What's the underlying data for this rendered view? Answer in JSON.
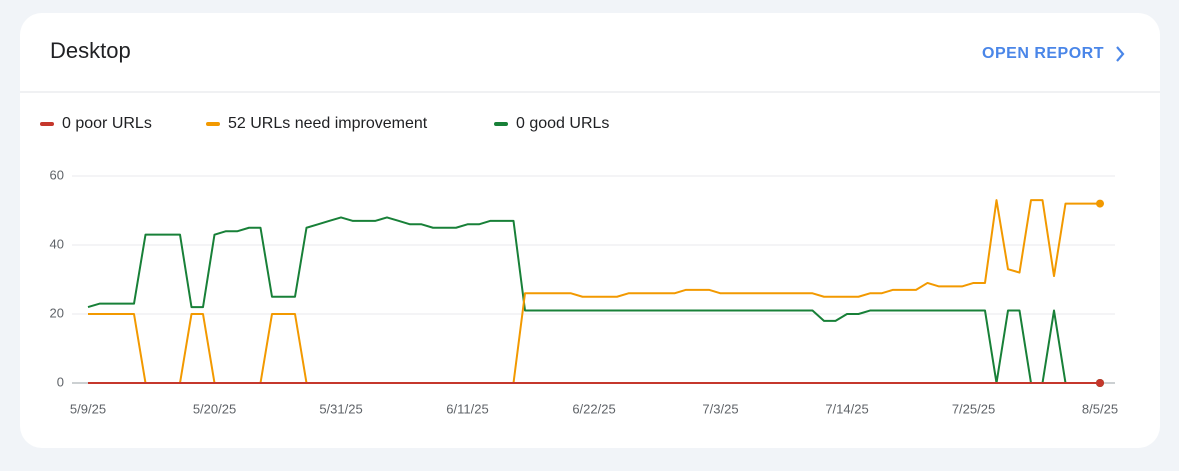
{
  "header": {
    "title": "Desktop",
    "action": "OPEN REPORT"
  },
  "chart_data": {
    "type": "line",
    "categories": [
      "5/9/25",
      null,
      null,
      null,
      null,
      null,
      null,
      null,
      null,
      null,
      null,
      "5/20/25",
      null,
      null,
      null,
      null,
      null,
      null,
      null,
      null,
      null,
      null,
      "5/31/25",
      null,
      null,
      null,
      null,
      null,
      null,
      null,
      null,
      null,
      null,
      "6/11/25",
      null,
      null,
      null,
      null,
      null,
      null,
      null,
      null,
      null,
      null,
      "6/22/25",
      null,
      null,
      null,
      null,
      null,
      null,
      null,
      null,
      null,
      null,
      "7/3/25",
      null,
      null,
      null,
      null,
      null,
      null,
      null,
      null,
      null,
      null,
      "7/14/25",
      null,
      null,
      null,
      null,
      null,
      null,
      null,
      null,
      null,
      null,
      "7/25/25",
      null,
      null,
      null,
      null,
      null,
      null,
      null,
      null,
      null,
      null,
      "8/5/25"
    ],
    "series": [
      {
        "name": "0 poor URLs",
        "color": "#c5372c",
        "values": [
          0,
          0,
          0,
          0,
          0,
          0,
          0,
          0,
          0,
          0,
          0,
          0,
          0,
          0,
          0,
          0,
          0,
          0,
          0,
          0,
          0,
          0,
          0,
          0,
          0,
          0,
          0,
          0,
          0,
          0,
          0,
          0,
          0,
          0,
          0,
          0,
          0,
          0,
          0,
          0,
          0,
          0,
          0,
          0,
          0,
          0,
          0,
          0,
          0,
          0,
          0,
          0,
          0,
          0,
          0,
          0,
          0,
          0,
          0,
          0,
          0,
          0,
          0,
          0,
          0,
          0,
          0,
          0,
          0,
          0,
          0,
          0,
          0,
          0,
          0,
          0,
          0,
          0,
          0,
          0,
          0,
          0,
          0,
          0,
          0,
          0,
          0,
          0,
          0
        ]
      },
      {
        "name": "52 URLs need improvement",
        "color": "#f29900",
        "values": [
          20,
          20,
          20,
          20,
          20,
          0,
          0,
          0,
          0,
          20,
          20,
          0,
          0,
          0,
          0,
          0,
          20,
          20,
          20,
          0,
          0,
          0,
          0,
          0,
          0,
          0,
          0,
          0,
          0,
          0,
          0,
          0,
          0,
          0,
          0,
          0,
          0,
          0,
          26,
          26,
          26,
          26,
          26,
          25,
          25,
          25,
          25,
          26,
          26,
          26,
          26,
          26,
          27,
          27,
          27,
          26,
          26,
          26,
          26,
          26,
          26,
          26,
          26,
          26,
          25,
          25,
          25,
          25,
          26,
          26,
          27,
          27,
          27,
          29,
          28,
          28,
          28,
          29,
          29,
          53,
          33,
          32,
          53,
          53,
          31,
          52,
          52,
          52,
          52
        ]
      },
      {
        "name": "0 good URLs",
        "color": "#188038",
        "values": [
          22,
          23,
          23,
          23,
          23,
          43,
          43,
          43,
          43,
          22,
          22,
          43,
          44,
          44,
          45,
          45,
          25,
          25,
          25,
          45,
          46,
          47,
          48,
          47,
          47,
          47,
          48,
          47,
          46,
          46,
          45,
          45,
          45,
          46,
          46,
          47,
          47,
          47,
          21,
          21,
          21,
          21,
          21,
          21,
          21,
          21,
          21,
          21,
          21,
          21,
          21,
          21,
          21,
          21,
          21,
          21,
          21,
          21,
          21,
          21,
          21,
          21,
          21,
          21,
          18,
          18,
          20,
          20,
          21,
          21,
          21,
          21,
          21,
          21,
          21,
          21,
          21,
          21,
          21,
          0,
          21,
          21,
          0,
          0,
          21,
          0,
          0,
          0,
          0
        ]
      }
    ],
    "ylim": [
      0,
      60
    ],
    "yticks": [
      0,
      20,
      40,
      60
    ],
    "grid": true,
    "legend": "top-left"
  }
}
